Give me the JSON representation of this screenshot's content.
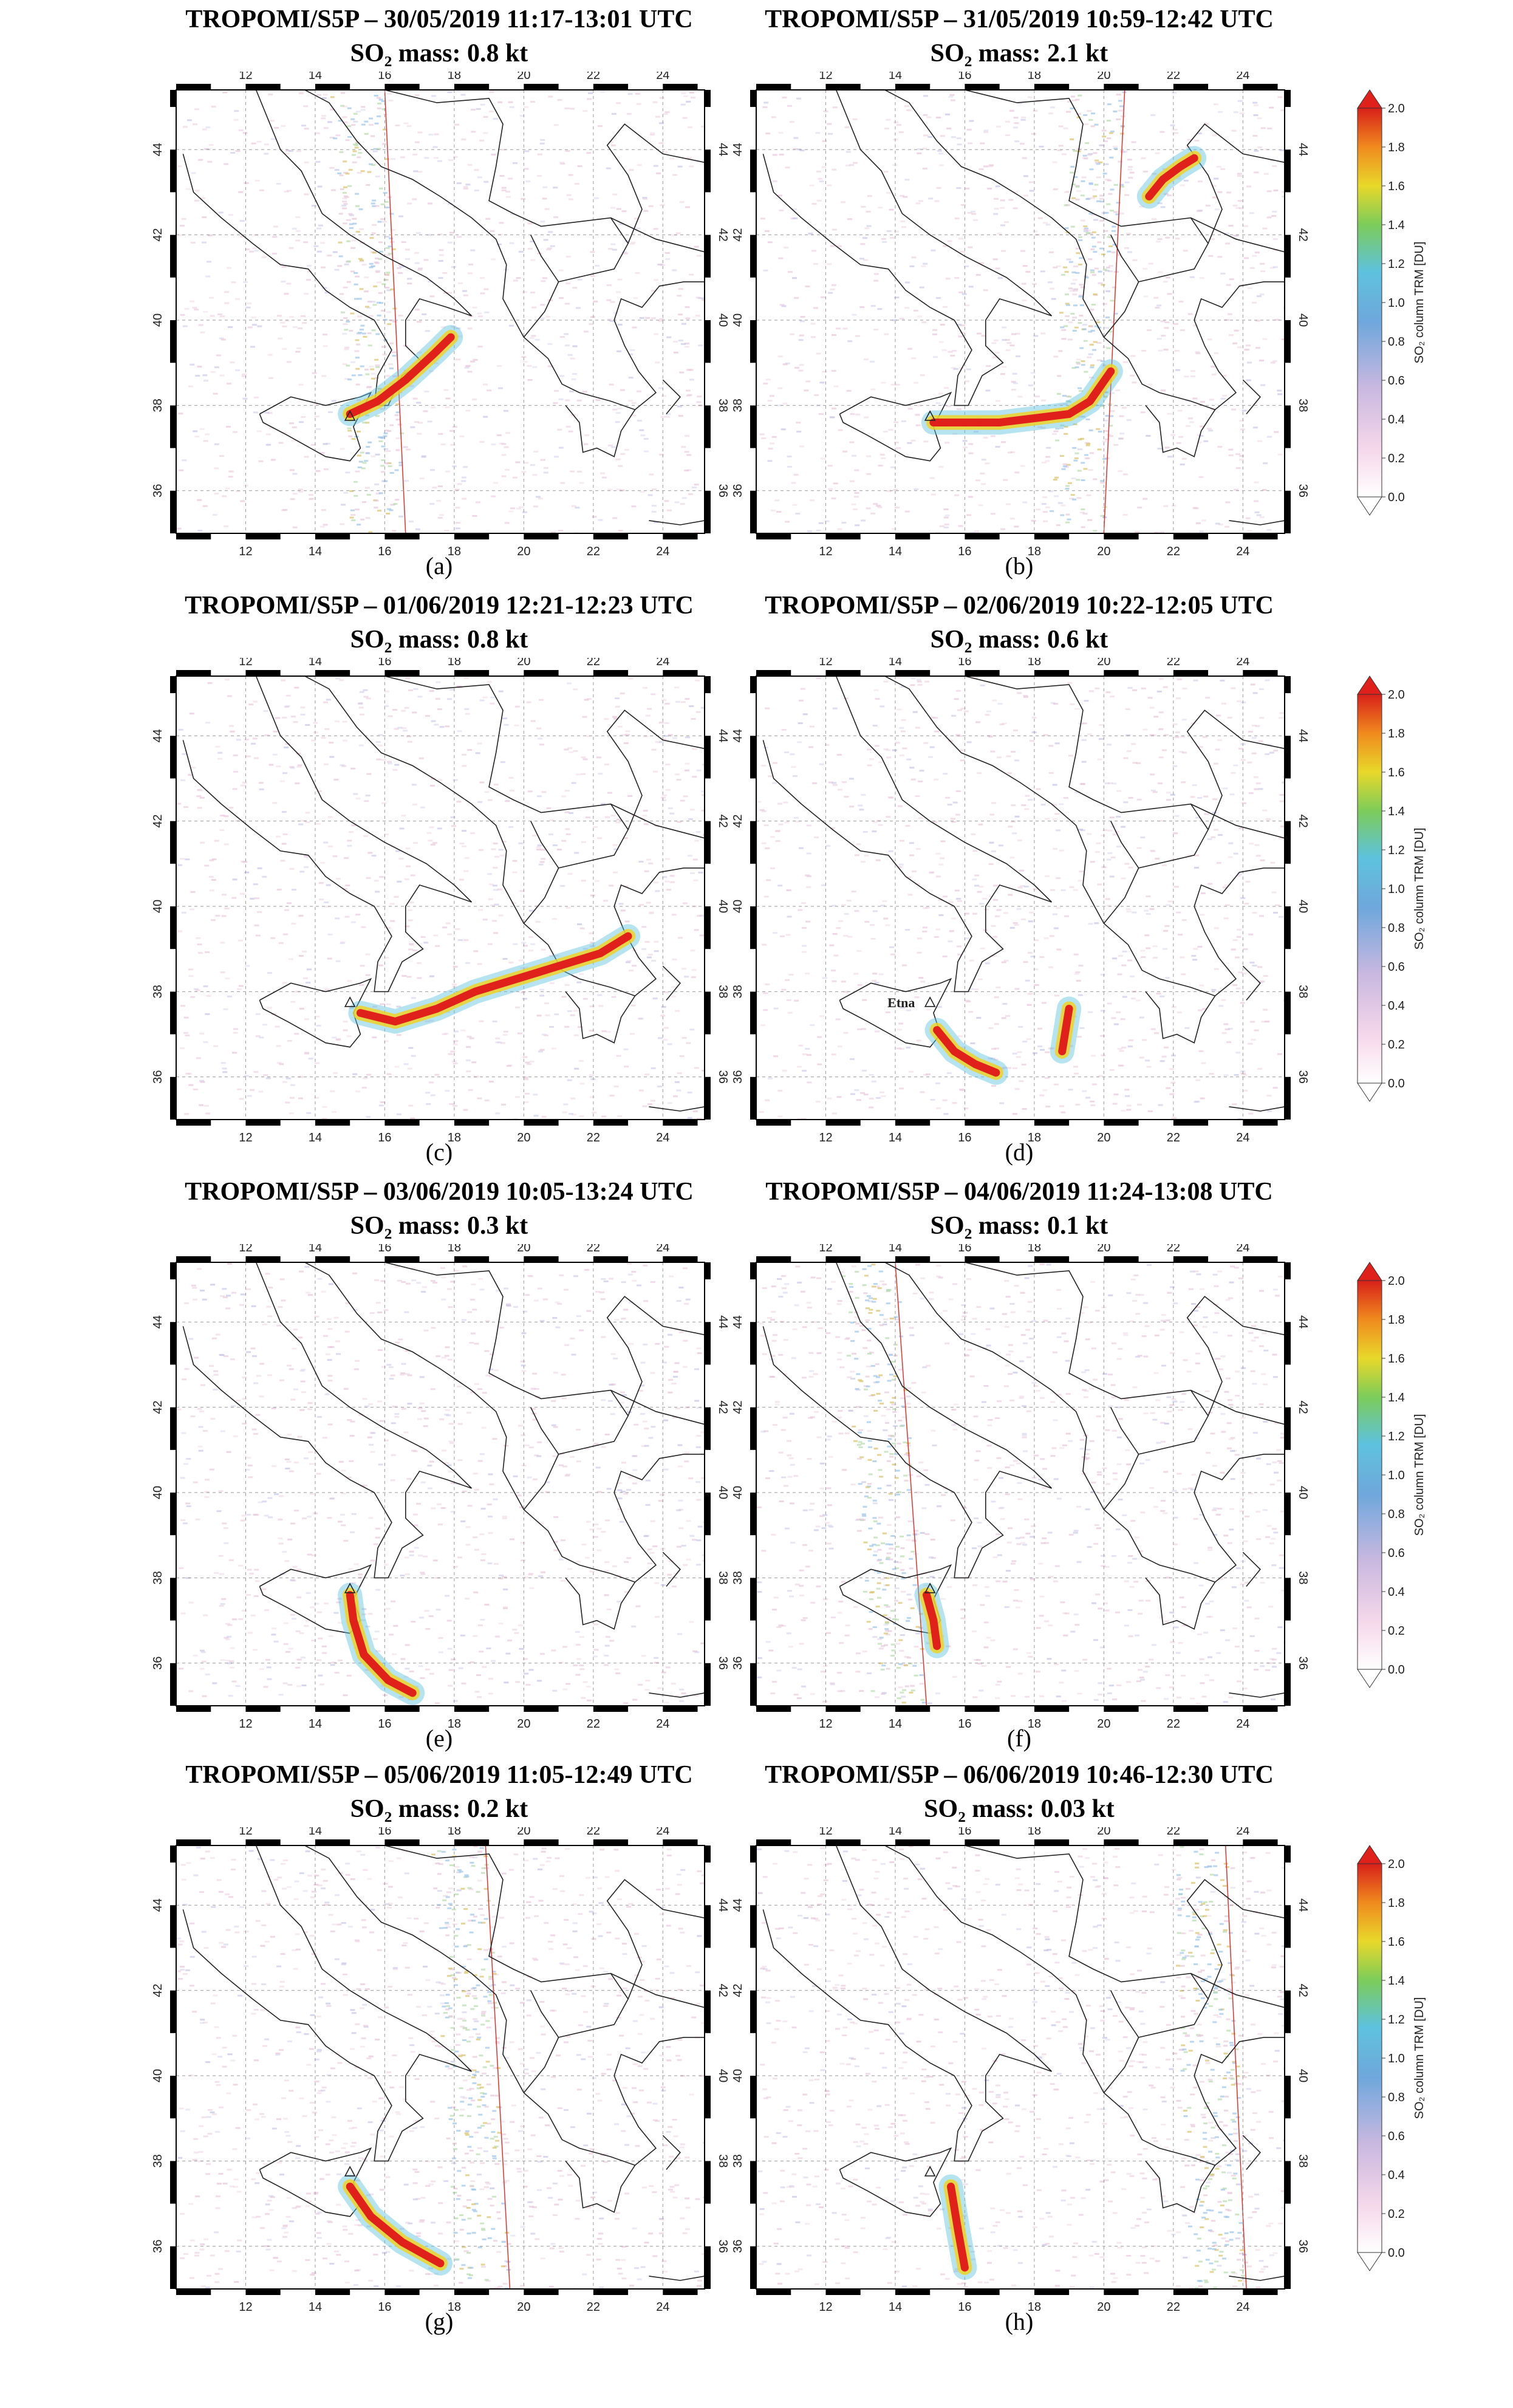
{
  "figure": {
    "panels": [
      {
        "id": "a",
        "label": "(a)",
        "title": "TROPOMI/S5P – 30/05/2019 11:17-13:01 UTC",
        "mass": "SO₂ mass: 0.8 kt",
        "etna_label": "",
        "colorbar": false
      },
      {
        "id": "b",
        "label": "(b)",
        "title": "TROPOMI/S5P – 31/05/2019 10:59-12:42 UTC",
        "mass": "SO₂ mass: 2.1 kt",
        "etna_label": "",
        "colorbar": true
      },
      {
        "id": "c",
        "label": "(c)",
        "title": "TROPOMI/S5P – 01/06/2019 12:21-12:23 UTC",
        "mass": "SO₂ mass: 0.8 kt",
        "etna_label": "",
        "colorbar": false
      },
      {
        "id": "d",
        "label": "(d)",
        "title": "TROPOMI/S5P – 02/06/2019 10:22-12:05 UTC",
        "mass": "SO₂ mass: 0.6 kt",
        "etna_label": "Etna",
        "colorbar": true
      },
      {
        "id": "e",
        "label": "(e)",
        "title": "TROPOMI/S5P – 03/06/2019 10:05-13:24 UTC",
        "mass": "SO₂ mass: 0.3 kt",
        "etna_label": "",
        "colorbar": false
      },
      {
        "id": "f",
        "label": "(f)",
        "title": "TROPOMI/S5P – 04/06/2019 11:24-13:08 UTC",
        "mass": "SO₂ mass: 0.1 kt",
        "etna_label": "",
        "colorbar": true
      },
      {
        "id": "g",
        "label": "(g)",
        "title": "TROPOMI/S5P – 05/06/2019 11:05-12:49 UTC",
        "mass": "SO₂ mass: 0.2 kt",
        "etna_label": "",
        "colorbar": false
      },
      {
        "id": "h",
        "label": "(h)",
        "title": "TROPOMI/S5P – 06/06/2019 10:46-12:30 UTC",
        "mass": "SO₂ mass: 0.03 kt",
        "etna_label": "",
        "colorbar": true
      }
    ],
    "axes": {
      "lon_ticks": [
        "12",
        "14",
        "16",
        "18",
        "20",
        "22",
        "24"
      ],
      "lat_ticks": [
        "44",
        "42",
        "40",
        "38",
        "36"
      ]
    },
    "colorbar": {
      "ticks": [
        "2.0",
        "1.8",
        "1.6",
        "1.4",
        "1.2",
        "1.0",
        "0.8",
        "0.6",
        "0.4",
        "0.2",
        "0.0"
      ],
      "label": "SO₂ column TRM [DU]"
    },
    "colors": {
      "plume_high": "#e0201a",
      "plume_mid": "#f2d21c",
      "plume_low": "#5ec2dd",
      "background_noise": "#e8c8dc",
      "swath_edge": "#e03030"
    }
  }
}
